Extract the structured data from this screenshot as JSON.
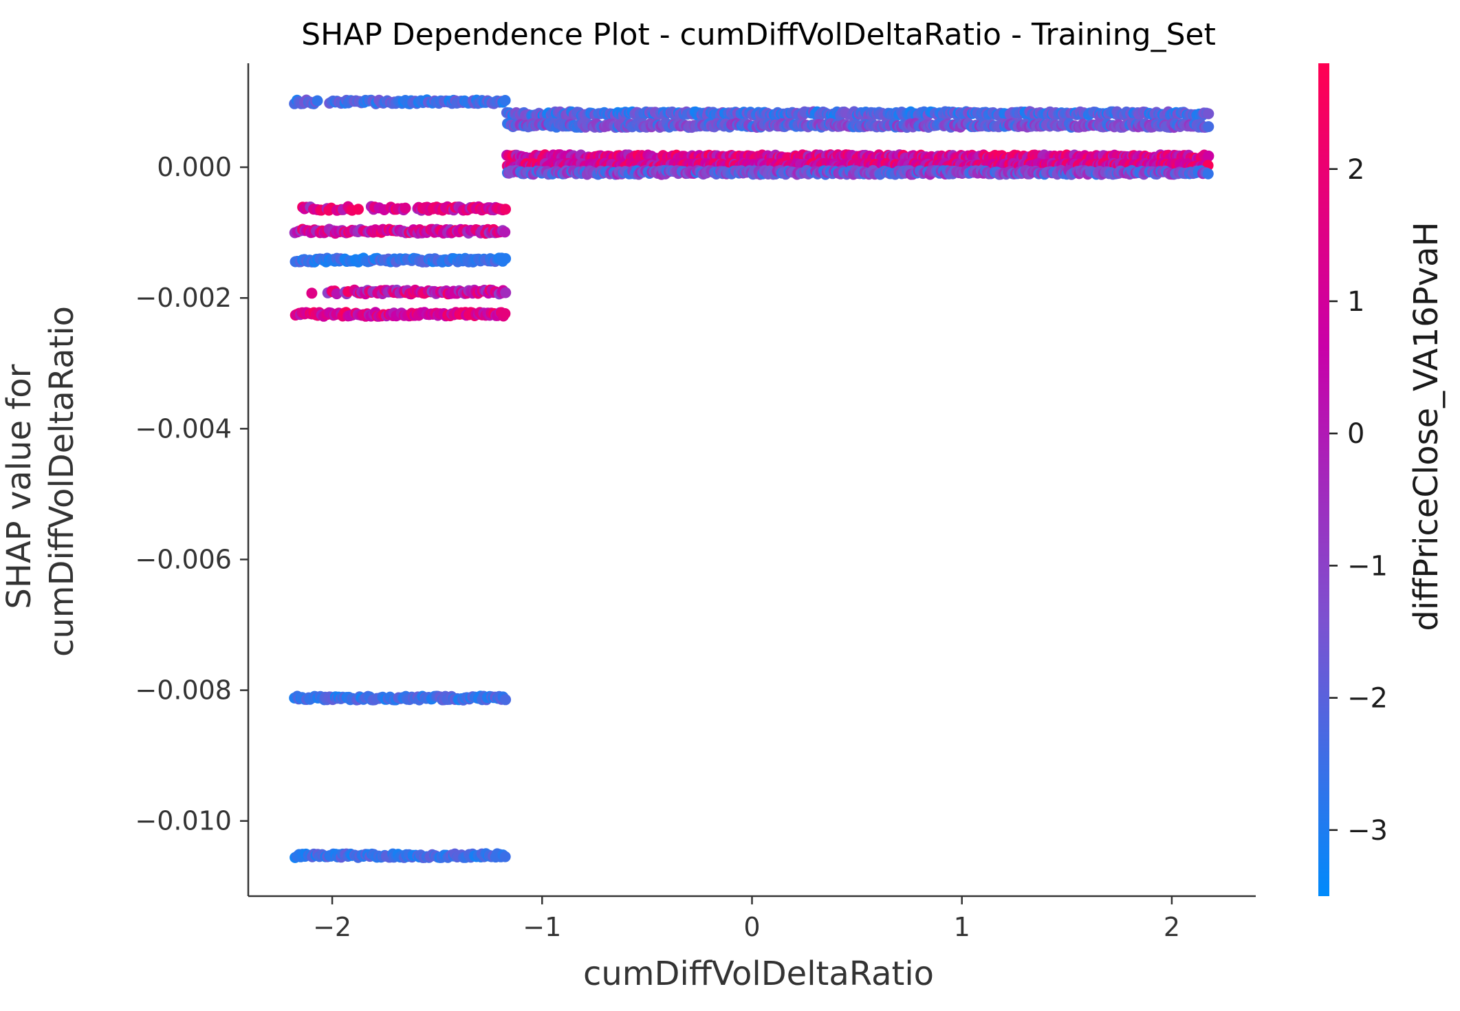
{
  "chart_data": {
    "type": "scatter",
    "title": "SHAP Dependence Plot - cumDiffVolDeltaRatio - Training_Set",
    "xlabel": "cumDiffVolDeltaRatio",
    "ylabel_lines": [
      "SHAP value for",
      "cumDiffVolDeltaRatio"
    ],
    "xlim": [
      -2.4,
      2.4
    ],
    "ylim": [
      -0.01115,
      0.00159
    ],
    "x_ticks": [
      {
        "value": -2,
        "label": "−2"
      },
      {
        "value": -1,
        "label": "−1"
      },
      {
        "value": 0,
        "label": "0"
      },
      {
        "value": 1,
        "label": "1"
      },
      {
        "value": 2,
        "label": "2"
      }
    ],
    "y_ticks": [
      {
        "value": 0.0,
        "label": "0.000"
      },
      {
        "value": -0.002,
        "label": "−0.002"
      },
      {
        "value": -0.004,
        "label": "−0.004"
      },
      {
        "value": -0.006,
        "label": "−0.006"
      },
      {
        "value": -0.008,
        "label": "−0.008"
      },
      {
        "value": -0.01,
        "label": "−0.010"
      }
    ],
    "colorbar": {
      "label": "diffPriceClose_VA16PvaH",
      "range": [
        -3.5,
        2.8
      ],
      "ticks": [
        {
          "value": 2,
          "label": "2"
        },
        {
          "value": 1,
          "label": "1"
        },
        {
          "value": 0,
          "label": "0"
        },
        {
          "value": -1,
          "label": "−1"
        },
        {
          "value": -2,
          "label": "−2"
        },
        {
          "value": -3,
          "label": "−3"
        }
      ],
      "colormap": [
        "#008afb",
        "#7c52d0",
        "#c900a8",
        "#ff0052"
      ]
    },
    "bands": [
      {
        "x_range": [
          -2.18,
          -1.17
        ],
        "y": 0.001,
        "color_range": [
          -3.2,
          -1.5
        ],
        "skip_range": [
          -2.07,
          -2.02
        ]
      },
      {
        "x_range": [
          -2.18,
          -1.17
        ],
        "y": -0.00063,
        "color_range": [
          -0.8,
          2.5
        ],
        "sparse_until": -1.6
      },
      {
        "x_range": [
          -2.18,
          -1.17
        ],
        "y": -0.00098,
        "color_range": [
          -0.8,
          2.5
        ]
      },
      {
        "x_range": [
          -2.18,
          -1.17
        ],
        "y": -0.00142,
        "color_range": [
          -3.2,
          -2.0
        ]
      },
      {
        "x_range": [
          -2.18,
          -1.17
        ],
        "y": -0.00191,
        "color_range": [
          -1.0,
          2.4
        ],
        "sparse_until": -1.9
      },
      {
        "x_range": [
          -2.18,
          -1.17
        ],
        "y": -0.00225,
        "color_range": [
          0.0,
          2.6
        ]
      },
      {
        "x_range": [
          -2.18,
          -1.17
        ],
        "y": -0.00812,
        "color_range": [
          -3.2,
          -1.8
        ]
      },
      {
        "x_range": [
          -2.18,
          -1.17
        ],
        "y": -0.01053,
        "color_range": [
          -3.2,
          -1.8
        ]
      },
      {
        "x_range": [
          -1.17,
          2.18
        ],
        "y": 0.00082,
        "color_range": [
          -3.2,
          -1.2
        ]
      },
      {
        "x_range": [
          -1.17,
          2.18
        ],
        "y": 0.00064,
        "color_range": [
          -2.8,
          -0.6
        ]
      },
      {
        "x_range": [
          -1.17,
          2.18
        ],
        "y": 0.00016,
        "color_range": [
          -0.5,
          2.7
        ]
      },
      {
        "x_range": [
          -1.17,
          2.18
        ],
        "y": 3e-05,
        "color_range": [
          -0.3,
          2.7
        ]
      },
      {
        "x_range": [
          -1.17,
          2.18
        ],
        "y": -8e-05,
        "color_range": [
          -2.8,
          -0.2
        ]
      }
    ]
  }
}
